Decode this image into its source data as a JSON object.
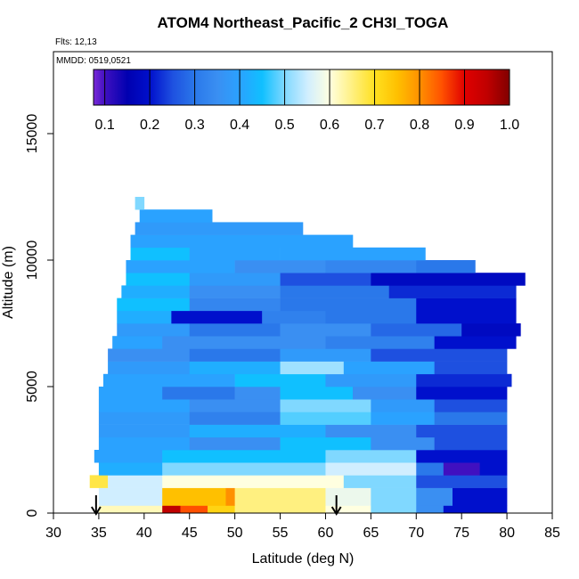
{
  "chart_data": {
    "type": "heatmap",
    "title": "ATOM4 Northeast_Pacific_2 CH3I_TOGA",
    "annotations": [
      "Flts: 12,13",
      "MMDD: 0519,0521"
    ],
    "xlabel": "Latitude (deg N)",
    "ylabel": "Altitude (m)",
    "xlim": [
      30,
      85
    ],
    "xticks": [
      30,
      35,
      40,
      45,
      50,
      55,
      60,
      65,
      70,
      75,
      80,
      85
    ],
    "ylim": [
      0,
      18240
    ],
    "yticks": [
      0,
      5000,
      10000,
      15000
    ],
    "colorbar_ticks": [
      {
        "value": 0.1,
        "label": "0.1"
      },
      0.2,
      0.3,
      0.4,
      0.5,
      0.6,
      0.7,
      0.8,
      0.9,
      {
        "value": 1.0,
        "label": "1.0"
      }
    ],
    "colorscale": [
      {
        "value": 0.075,
        "color": "#7a2ad8"
      },
      {
        "value": 0.1,
        "color": "#4010c0"
      },
      {
        "value": 0.15,
        "color": "#0000b0"
      },
      {
        "value": 0.2,
        "color": "#0010cc"
      },
      {
        "value": 0.25,
        "color": "#1e50e0"
      },
      {
        "value": 0.3,
        "color": "#2a78ea"
      },
      {
        "value": 0.35,
        "color": "#3a8ff2"
      },
      {
        "value": 0.4,
        "color": "#2aa2ff"
      },
      {
        "value": 0.45,
        "color": "#10c0ff"
      },
      {
        "value": 0.5,
        "color": "#80d8ff"
      },
      {
        "value": 0.55,
        "color": "#d0eeff"
      },
      {
        "value": 0.6,
        "color": "#ffffe0"
      },
      {
        "value": 0.65,
        "color": "#fff080"
      },
      {
        "value": 0.7,
        "color": "#ffe020"
      },
      {
        "value": 0.75,
        "color": "#ffc000"
      },
      {
        "value": 0.8,
        "color": "#ff9000"
      },
      {
        "value": 0.85,
        "color": "#ff5000"
      },
      {
        "value": 0.9,
        "color": "#e00000"
      },
      {
        "value": 0.95,
        "color": "#c00000"
      },
      {
        "value": 1.0,
        "color": "#800000"
      }
    ],
    "arrows": [
      34.7,
      61.2
    ],
    "rows": [
      {
        "alt": [
          0,
          300
        ],
        "lat": [
          35,
          42,
          44,
          47,
          50,
          60,
          65,
          70,
          73,
          80
        ],
        "values": [
          0.62,
          0.95,
          0.85,
          0.72,
          0.65,
          0.6,
          0.5,
          0.35,
          0.2
        ]
      },
      {
        "alt": [
          300,
          1000
        ],
        "lat": [
          35,
          42,
          49,
          50,
          60,
          65,
          70,
          74,
          80
        ],
        "values": [
          0.55,
          0.75,
          0.8,
          0.65,
          0.58,
          0.5,
          0.35,
          0.2
        ]
      },
      {
        "alt": [
          1000,
          1500
        ],
        "lat": [
          34,
          36,
          42,
          50,
          62,
          70,
          80
        ],
        "values": [
          0.68,
          0.55,
          0.6,
          0.6,
          0.5,
          0.25
        ]
      },
      {
        "alt": [
          1500,
          2000
        ],
        "lat": [
          35,
          42,
          60,
          70,
          73,
          77,
          80
        ],
        "values": [
          0.42,
          0.5,
          0.55,
          0.3,
          0.1,
          0.2
        ]
      },
      {
        "alt": [
          2000,
          2500
        ],
        "lat": [
          34.5,
          42,
          60,
          70,
          80
        ],
        "values": [
          0.4,
          0.45,
          0.5,
          0.2
        ]
      },
      {
        "alt": [
          2500,
          3000
        ],
        "lat": [
          35,
          45,
          55,
          65,
          72,
          80
        ],
        "values": [
          0.4,
          0.35,
          0.45,
          0.35,
          0.25
        ]
      },
      {
        "alt": [
          3000,
          3500
        ],
        "lat": [
          35,
          45,
          60,
          70,
          80
        ],
        "values": [
          0.38,
          0.42,
          0.35,
          0.25
        ]
      },
      {
        "alt": [
          3500,
          4000
        ],
        "lat": [
          35,
          45,
          55,
          65,
          72,
          80
        ],
        "values": [
          0.38,
          0.32,
          0.48,
          0.4,
          0.3
        ]
      },
      {
        "alt": [
          4000,
          4500
        ],
        "lat": [
          35,
          45,
          55,
          65,
          72,
          80
        ],
        "values": [
          0.4,
          0.35,
          0.5,
          0.38,
          0.25
        ]
      },
      {
        "alt": [
          4500,
          5000
        ],
        "lat": [
          35,
          42,
          50,
          55,
          63,
          70,
          80
        ],
        "values": [
          0.4,
          0.3,
          0.35,
          0.45,
          0.35,
          0.2
        ]
      },
      {
        "alt": [
          5000,
          5500
        ],
        "lat": [
          35.5,
          50,
          60,
          70,
          80.5
        ],
        "values": [
          0.4,
          0.45,
          0.38,
          0.22
        ]
      },
      {
        "alt": [
          5500,
          6000
        ],
        "lat": [
          36,
          45,
          55,
          62,
          72,
          80
        ],
        "values": [
          0.38,
          0.42,
          0.52,
          0.4,
          0.25
        ]
      },
      {
        "alt": [
          6000,
          6500
        ],
        "lat": [
          36,
          45,
          55,
          65,
          80
        ],
        "values": [
          0.35,
          0.3,
          0.38,
          0.25
        ]
      },
      {
        "alt": [
          6500,
          7000
        ],
        "lat": [
          36.5,
          42,
          60,
          72,
          81
        ],
        "values": [
          0.4,
          0.35,
          0.32,
          0.2
        ]
      },
      {
        "alt": [
          7000,
          7500
        ],
        "lat": [
          37,
          45,
          55,
          65,
          75,
          81.5
        ],
        "values": [
          0.38,
          0.3,
          0.35,
          0.28,
          0.18
        ]
      },
      {
        "alt": [
          7500,
          8000
        ],
        "lat": [
          37,
          43,
          53,
          60,
          70,
          81
        ],
        "values": [
          0.42,
          0.2,
          0.32,
          0.3,
          0.2
        ]
      },
      {
        "alt": [
          8000,
          8500
        ],
        "lat": [
          37,
          45,
          55,
          70,
          81
        ],
        "values": [
          0.45,
          0.33,
          0.3,
          0.2
        ]
      },
      {
        "alt": [
          8500,
          9000
        ],
        "lat": [
          37.5,
          45,
          55,
          67,
          81
        ],
        "values": [
          0.42,
          0.35,
          0.3,
          0.22
        ]
      },
      {
        "alt": [
          9000,
          9500
        ],
        "lat": [
          38,
          45,
          55,
          65,
          82
        ],
        "values": [
          0.45,
          0.38,
          0.25,
          0.18
        ]
      },
      {
        "alt": [
          9500,
          10000
        ],
        "lat": [
          38,
          50,
          60,
          70,
          76.5
        ],
        "values": [
          0.4,
          0.35,
          0.33,
          0.3
        ]
      },
      {
        "alt": [
          10000,
          10500
        ],
        "lat": [
          38.5,
          45,
          55,
          71
        ],
        "values": [
          0.45,
          0.4,
          0.4
        ]
      },
      {
        "alt": [
          10500,
          11000
        ],
        "lat": [
          38.5,
          63
        ],
        "values": [
          0.4
        ]
      },
      {
        "alt": [
          11000,
          11500
        ],
        "lat": [
          39,
          57.5
        ],
        "values": [
          0.38
        ]
      },
      {
        "alt": [
          11500,
          12000
        ],
        "lat": [
          39.5,
          47.5
        ],
        "values": [
          0.4
        ]
      },
      {
        "alt": [
          12000,
          12500
        ],
        "lat": [
          39,
          40
        ],
        "values": [
          0.5
        ]
      }
    ]
  }
}
